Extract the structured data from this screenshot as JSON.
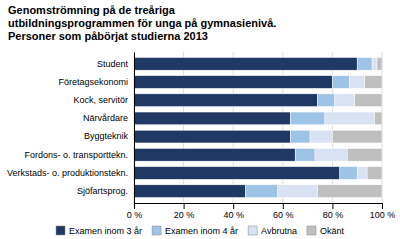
{
  "chart_data": {
    "type": "bar",
    "orientation": "horizontal",
    "stacked": true,
    "title": "Genomströmning på de treåriga\nutbildningsprogrammen för unga på gymnasienivå.\nPersoner som påbörjat studierna 2013",
    "categories": [
      "Sjöfartsprog.",
      "Verkstads- o. produktionstekn.",
      "Fordons- o. transporttekn.",
      "Byggteknik",
      "Närvårdare",
      "Kock, servitör",
      "Företagsekonomi",
      "Student"
    ],
    "series": [
      {
        "name": "Examen inom 3 år",
        "color": "#1F3864",
        "values": [
          45,
          83,
          65,
          63,
          63,
          74,
          80,
          90
        ]
      },
      {
        "name": "Examen inom 4 år",
        "color": "#9DC3E6",
        "values": [
          13,
          7,
          8,
          8,
          14,
          7,
          7,
          6
        ]
      },
      {
        "name": "Avbrutna",
        "color": "#D9E2F3",
        "values": [
          16,
          4,
          13,
          9,
          20,
          8,
          6,
          2
        ]
      },
      {
        "name": "Okänt",
        "color": "#BFBFBF",
        "values": [
          26,
          6,
          14,
          20,
          3,
          11,
          7,
          2
        ]
      }
    ],
    "xlim": [
      0,
      100
    ],
    "xticks": [
      {
        "value": 0,
        "label": "0 %"
      },
      {
        "value": 20,
        "label": "20 %"
      },
      {
        "value": 40,
        "label": "40 %"
      },
      {
        "value": 60,
        "label": "60 %"
      },
      {
        "value": 80,
        "label": "80 %"
      },
      {
        "value": 100,
        "label": "100 %"
      }
    ],
    "grid": true,
    "legend": "bottom"
  }
}
